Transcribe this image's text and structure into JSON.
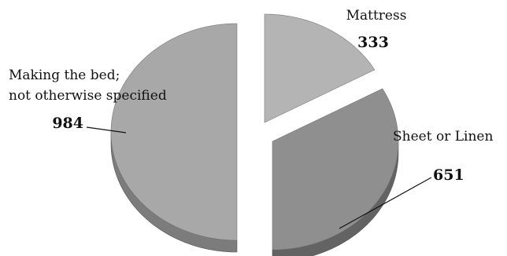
{
  "chart_data": {
    "type": "pie",
    "style": "3d-exploded-grayscale",
    "categories": [
      "Mattress",
      "Sheet or Linen",
      "Making the bed; not otherwise specified"
    ],
    "values": [
      333,
      651,
      984
    ],
    "value_labels": [
      "333",
      "651",
      "984"
    ],
    "category_labels": [
      [
        "Mattress"
      ],
      [
        "Sheet or Linen"
      ],
      [
        "Making the bed;",
        "not otherwise specified"
      ]
    ],
    "colors": [
      "#b4b4b4",
      "#8f8f8f",
      "#a8a8a8"
    ],
    "side_colors": [
      "#8a8a8a",
      "#636363",
      "#7c7c7c"
    ],
    "legend": "none",
    "title": ""
  }
}
